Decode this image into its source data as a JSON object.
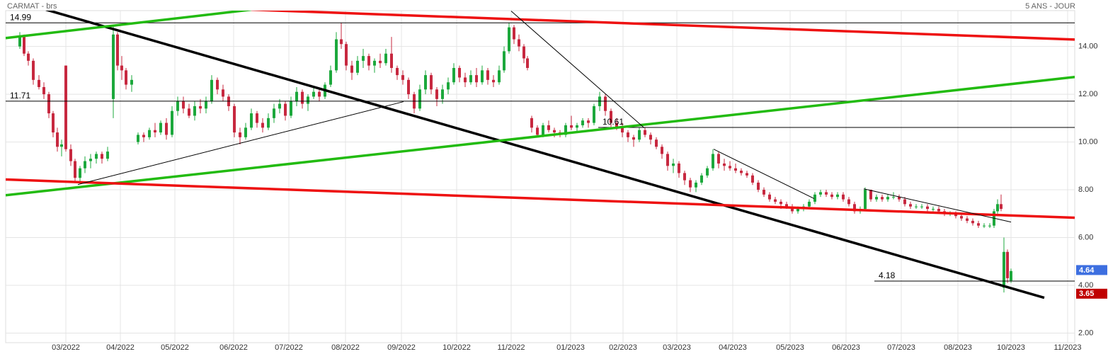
{
  "chart_data": {
    "type": "candlestick",
    "title": "CARMAT - brs",
    "subtitle": "5 ANS - JOUR",
    "up_color": "#1ca83c",
    "down_color": "#c7283f",
    "grid": true,
    "xlim": [
      0,
      151
    ],
    "ylim": [
      1.6,
      15.5
    ],
    "yticks": [
      {
        "value": 2,
        "label": "2.00"
      },
      {
        "value": 4,
        "label": "4.00"
      },
      {
        "value": 6,
        "label": "6.00"
      },
      {
        "value": 8,
        "label": "8.00"
      },
      {
        "value": 10,
        "label": "10.00"
      },
      {
        "value": 12,
        "label": "12.00"
      },
      {
        "value": 14,
        "label": "14.00"
      }
    ],
    "xticks": [
      {
        "value": 8.5,
        "label": "03/2022"
      },
      {
        "value": 16.2,
        "label": "04/2022"
      },
      {
        "value": 23.9,
        "label": "05/2022"
      },
      {
        "value": 32.2,
        "label": "06/2022"
      },
      {
        "value": 40.0,
        "label": "07/2022"
      },
      {
        "value": 48.0,
        "label": "08/2022"
      },
      {
        "value": 55.9,
        "label": "09/2022"
      },
      {
        "value": 63.7,
        "label": "10/2022"
      },
      {
        "value": 71.4,
        "label": "11/2022"
      },
      {
        "value": 79.8,
        "label": "01/2023"
      },
      {
        "value": 87.2,
        "label": "02/2023"
      },
      {
        "value": 94.8,
        "label": "03/2023"
      },
      {
        "value": 102.7,
        "label": "04/2023"
      },
      {
        "value": 110.8,
        "label": "05/2023"
      },
      {
        "value": 118.7,
        "label": "06/2023"
      },
      {
        "value": 126.5,
        "label": "07/2023"
      },
      {
        "value": 134.5,
        "label": "08/2023"
      },
      {
        "value": 142.0,
        "label": "10/2023"
      },
      {
        "value": 150.0,
        "label": "11/2023"
      }
    ],
    "x": [
      2.0,
      2.6,
      3.2,
      3.9,
      4.7,
      5.4,
      6.1,
      6.7,
      7.3,
      7.9,
      8.5,
      9.2,
      9.8,
      10.5,
      11.2,
      12.0,
      12.8,
      13.6,
      14.4,
      15.2,
      15.8,
      16.4,
      17.0,
      17.8,
      18.7,
      19.5,
      20.3,
      21.1,
      21.9,
      22.7,
      23.5,
      24.3,
      25.1,
      25.9,
      26.7,
      27.5,
      28.3,
      29.1,
      29.9,
      30.7,
      31.5,
      32.3,
      33.1,
      33.9,
      34.7,
      35.5,
      36.3,
      37.1,
      37.9,
      38.7,
      39.5,
      40.3,
      41.1,
      41.9,
      42.7,
      43.5,
      44.3,
      45.1,
      45.9,
      46.7,
      47.4,
      48.1,
      48.9,
      49.7,
      50.5,
      51.3,
      52.1,
      52.9,
      53.7,
      54.5,
      55.3,
      56.1,
      56.9,
      57.7,
      58.5,
      59.3,
      60.1,
      60.9,
      61.7,
      62.5,
      63.3,
      64.1,
      64.9,
      65.7,
      66.5,
      67.3,
      68.1,
      68.9,
      69.7,
      70.4,
      71.1,
      71.8,
      72.5,
      73.2,
      73.7,
      74.3,
      75.1,
      75.9,
      76.7,
      77.5,
      78.3,
      79.1,
      79.9,
      80.7,
      81.5,
      82.3,
      83.1,
      83.9,
      84.7,
      85.5,
      86.3,
      87.1,
      87.9,
      88.7,
      89.5,
      90.3,
      91.1,
      91.9,
      92.7,
      93.5,
      94.3,
      95.1,
      95.9,
      96.7,
      97.5,
      98.3,
      99.1,
      99.9,
      100.7,
      101.5,
      102.3,
      103.1,
      103.9,
      104.7,
      105.5,
      106.3,
      107.1,
      107.9,
      108.7,
      109.5,
      110.3,
      111.1,
      111.9,
      112.7,
      113.5,
      114.3,
      115.1,
      115.9,
      116.7,
      117.5,
      118.3,
      119.1,
      119.9,
      120.7,
      121.4,
      122.2,
      123.0,
      123.8,
      124.6,
      125.4,
      126.2,
      127.0,
      127.8,
      128.6,
      129.4,
      130.2,
      131.0,
      131.8,
      132.6,
      133.4,
      134.2,
      135.0,
      135.8,
      136.6,
      137.4,
      138.2,
      139.0,
      139.6,
      140.1,
      140.6,
      141.0,
      141.5,
      142.0
    ],
    "open": [
      14.0,
      14.4,
      13.7,
      13.4,
      12.6,
      12.3,
      12.0,
      11.2,
      10.4,
      9.8,
      13.2,
      9.7,
      9.2,
      8.5,
      8.9,
      9.2,
      9.3,
      9.5,
      9.3,
      11.8,
      14.5,
      13.2,
      13.0,
      12.4,
      10.0,
      10.3,
      10.2,
      10.5,
      10.4,
      10.8,
      10.3,
      11.3,
      11.7,
      11.4,
      11.1,
      11.5,
      11.4,
      11.7,
      12.6,
      12.2,
      11.9,
      11.5,
      10.4,
      10.2,
      10.6,
      11.2,
      10.8,
      10.6,
      11.0,
      11.4,
      11.6,
      11.1,
      11.7,
      12.1,
      11.6,
      11.9,
      12.1,
      11.9,
      12.4,
      13.0,
      14.3,
      14.1,
      13.2,
      12.9,
      13.4,
      13.6,
      13.2,
      13.4,
      13.3,
      13.7,
      13.1,
      12.8,
      12.6,
      12.0,
      11.4,
      12.2,
      12.8,
      12.2,
      11.8,
      12.2,
      12.5,
      13.1,
      12.7,
      12.5,
      12.8,
      12.5,
      13.0,
      12.6,
      12.5,
      13.0,
      13.8,
      14.8,
      14.3,
      14.0,
      13.5,
      11.0,
      10.6,
      10.3,
      10.7,
      10.5,
      10.4,
      10.3,
      10.7,
      10.6,
      10.7,
      10.9,
      10.8,
      11.5,
      11.9,
      11.3,
      10.8,
      10.6,
      10.4,
      10.2,
      10.1,
      10.5,
      10.3,
      10.1,
      9.8,
      9.5,
      9.0,
      9.1,
      8.7,
      8.4,
      8.1,
      8.3,
      8.6,
      8.9,
      9.5,
      9.1,
      9.0,
      8.9,
      8.8,
      8.7,
      8.6,
      8.3,
      8.0,
      7.8,
      7.6,
      7.5,
      7.4,
      7.3,
      7.1,
      7.2,
      7.3,
      7.5,
      7.8,
      7.9,
      7.8,
      7.7,
      7.8,
      7.6,
      7.4,
      7.1,
      7.2,
      8.0,
      7.6,
      7.7,
      7.6,
      7.7,
      7.7,
      7.6,
      7.4,
      7.3,
      7.3,
      7.3,
      7.2,
      7.2,
      7.1,
      7.0,
      7.0,
      6.9,
      6.8,
      6.7,
      6.6,
      6.5,
      6.5,
      6.5,
      7.1,
      7.4,
      3.9,
      5.4,
      4.2
    ],
    "high": [
      14.6,
      14.5,
      13.8,
      13.5,
      12.8,
      12.5,
      12.1,
      11.3,
      10.6,
      10.1,
      13.2,
      9.9,
      9.3,
      9.0,
      9.4,
      9.5,
      9.6,
      9.6,
      9.8,
      14.9,
      14.6,
      13.6,
      13.1,
      12.8,
      10.4,
      10.4,
      10.6,
      10.8,
      10.9,
      11.0,
      11.5,
      11.9,
      11.9,
      11.6,
      11.7,
      11.8,
      11.9,
      12.8,
      12.7,
      12.4,
      12.0,
      11.6,
      10.6,
      10.8,
      11.4,
      11.3,
      11.0,
      11.2,
      11.6,
      11.8,
      11.7,
      11.9,
      12.3,
      12.2,
      12.0,
      12.3,
      12.2,
      12.5,
      13.2,
      14.6,
      15.0,
      14.2,
      13.4,
      13.6,
      13.9,
      13.7,
      13.5,
      13.7,
      13.9,
      14.4,
      13.2,
      13.0,
      12.7,
      12.1,
      12.4,
      13.0,
      12.9,
      12.3,
      12.4,
      12.7,
      13.3,
      13.2,
      12.9,
      13.0,
      13.1,
      13.2,
      13.1,
      12.8,
      13.2,
      14.0,
      15.0,
      14.9,
      14.5,
      14.1,
      13.6,
      11.1,
      10.7,
      10.8,
      10.9,
      10.6,
      10.5,
      10.8,
      11.1,
      10.8,
      11.0,
      11.0,
      11.6,
      12.1,
      12.0,
      11.4,
      11.0,
      10.8,
      10.5,
      10.3,
      10.6,
      10.6,
      10.4,
      10.2,
      9.9,
      9.6,
      9.3,
      9.2,
      8.8,
      8.5,
      8.4,
      8.7,
      9.0,
      9.7,
      9.6,
      9.3,
      9.2,
      9.1,
      8.9,
      8.8,
      8.7,
      8.4,
      8.1,
      7.9,
      7.7,
      7.6,
      7.5,
      7.4,
      7.3,
      7.4,
      7.6,
      7.9,
      8.0,
      8.0,
      7.9,
      7.9,
      7.9,
      7.7,
      7.5,
      7.3,
      8.1,
      8.0,
      7.8,
      7.8,
      7.8,
      7.9,
      7.8,
      7.7,
      7.5,
      7.4,
      7.4,
      7.4,
      7.3,
      7.3,
      7.2,
      7.1,
      7.1,
      7.0,
      6.9,
      6.8,
      6.7,
      6.6,
      6.6,
      7.2,
      7.6,
      7.8,
      6.0,
      5.5,
      4.7
    ],
    "low": [
      13.9,
      13.6,
      13.2,
      12.4,
      12.2,
      11.8,
      11.0,
      10.2,
      9.6,
      9.4,
      9.6,
      9.0,
      8.3,
      8.3,
      8.7,
      8.9,
      9.1,
      9.1,
      9.2,
      11.0,
      13.0,
      12.6,
      12.2,
      12.1,
      9.9,
      10.0,
      10.1,
      10.2,
      10.3,
      10.1,
      10.2,
      11.1,
      11.2,
      11.0,
      10.9,
      11.2,
      11.2,
      11.6,
      12.0,
      11.7,
      11.3,
      10.2,
      9.9,
      10.1,
      10.5,
      10.6,
      10.4,
      10.5,
      10.8,
      11.2,
      10.9,
      11.0,
      11.5,
      11.4,
      11.3,
      11.8,
      11.7,
      11.8,
      12.3,
      12.9,
      13.9,
      13.0,
      12.6,
      12.8,
      13.1,
      13.0,
      12.9,
      13.1,
      13.2,
      12.9,
      12.6,
      12.4,
      11.8,
      11.2,
      11.3,
      12.0,
      12.0,
      11.5,
      11.6,
      12.0,
      12.4,
      12.5,
      12.3,
      12.4,
      12.3,
      12.4,
      12.4,
      12.3,
      12.4,
      12.9,
      13.7,
      14.1,
      13.8,
      13.3,
      13.0,
      10.4,
      10.2,
      10.2,
      10.4,
      10.2,
      10.2,
      10.2,
      10.5,
      10.4,
      10.6,
      10.6,
      10.7,
      11.3,
      11.1,
      10.6,
      10.5,
      10.2,
      10.0,
      9.8,
      10.0,
      10.2,
      9.9,
      9.7,
      9.3,
      8.8,
      8.7,
      8.5,
      8.2,
      7.9,
      7.9,
      8.2,
      8.5,
      8.8,
      8.9,
      8.8,
      8.8,
      8.7,
      8.6,
      8.5,
      8.2,
      7.9,
      7.7,
      7.5,
      7.4,
      7.2,
      7.2,
      7.0,
      7.0,
      7.1,
      7.2,
      7.4,
      7.7,
      7.7,
      7.6,
      7.6,
      7.5,
      7.3,
      7.0,
      7.0,
      7.1,
      7.5,
      7.5,
      7.5,
      7.5,
      7.6,
      7.5,
      7.3,
      7.2,
      7.2,
      7.2,
      7.1,
      7.1,
      7.0,
      6.9,
      6.9,
      6.8,
      6.7,
      6.6,
      6.5,
      6.4,
      6.4,
      6.4,
      6.4,
      7.0,
      7.1,
      3.7,
      4.1,
      4.1
    ],
    "close": [
      14.4,
      13.7,
      13.4,
      12.6,
      12.3,
      12.0,
      11.2,
      10.4,
      9.8,
      9.9,
      9.7,
      9.2,
      8.5,
      8.9,
      9.2,
      9.3,
      9.5,
      9.3,
      9.6,
      14.5,
      13.2,
      13.0,
      12.4,
      12.6,
      10.3,
      10.2,
      10.5,
      10.4,
      10.8,
      10.3,
      11.3,
      11.7,
      11.4,
      11.1,
      11.5,
      11.4,
      11.7,
      12.6,
      12.2,
      11.9,
      11.5,
      10.4,
      10.2,
      10.6,
      11.2,
      10.8,
      10.6,
      11.0,
      11.4,
      11.6,
      11.1,
      11.7,
      12.1,
      11.6,
      11.9,
      12.1,
      11.9,
      12.4,
      13.0,
      14.3,
      14.1,
      13.2,
      12.9,
      13.4,
      13.6,
      13.2,
      13.4,
      13.3,
      13.7,
      13.1,
      12.8,
      12.6,
      12.0,
      11.4,
      12.2,
      12.8,
      12.2,
      11.8,
      12.2,
      12.5,
      13.1,
      12.7,
      12.5,
      12.8,
      12.5,
      13.0,
      12.6,
      12.5,
      13.0,
      13.8,
      14.8,
      14.3,
      14.0,
      13.5,
      13.1,
      10.6,
      10.3,
      10.7,
      10.5,
      10.4,
      10.3,
      10.7,
      10.6,
      10.7,
      10.9,
      10.8,
      11.5,
      11.9,
      11.3,
      10.8,
      10.6,
      10.4,
      10.2,
      10.1,
      10.5,
      10.3,
      10.1,
      9.8,
      9.5,
      9.0,
      9.1,
      8.7,
      8.4,
      8.1,
      8.3,
      8.6,
      8.9,
      9.5,
      9.1,
      9.0,
      8.9,
      8.8,
      8.7,
      8.6,
      8.3,
      8.0,
      7.8,
      7.6,
      7.5,
      7.4,
      7.3,
      7.1,
      7.2,
      7.3,
      7.5,
      7.8,
      7.9,
      7.8,
      7.7,
      7.8,
      7.6,
      7.4,
      7.1,
      7.2,
      8.0,
      7.6,
      7.7,
      7.6,
      7.7,
      7.7,
      7.6,
      7.4,
      7.3,
      7.3,
      7.3,
      7.2,
      7.2,
      7.1,
      7.0,
      7.0,
      6.9,
      6.8,
      6.7,
      6.6,
      6.5,
      6.5,
      6.5,
      7.1,
      7.4,
      7.2,
      5.4,
      4.3,
      4.6
    ],
    "trendlines": [
      {
        "color": "#000000",
        "weight": "thick",
        "x": [
          5.7,
          146.7
        ],
        "y": [
          15.54,
          3.48
        ]
      },
      {
        "color": "#22bb11",
        "weight": "thick",
        "x": [
          0,
          34.7
        ],
        "y": [
          14.35,
          15.54
        ]
      },
      {
        "color": "#22bb11",
        "weight": "thick",
        "x": [
          0,
          151
        ],
        "y": [
          7.77,
          12.72
        ]
      },
      {
        "color": "#ee1111",
        "weight": "thick",
        "x": [
          34.7,
          151
        ],
        "y": [
          15.54,
          14.29
        ]
      },
      {
        "color": "#ee1111",
        "weight": "thick",
        "x": [
          0,
          151
        ],
        "y": [
          8.43,
          6.83
        ]
      },
      {
        "color": "#000000",
        "weight": "thin",
        "x": [
          10.2,
          56.2
        ],
        "y": [
          8.22,
          11.69
        ]
      },
      {
        "color": "#000000",
        "weight": "thin",
        "x": [
          71.4,
          90.2
        ],
        "y": [
          15.48,
          10.59
        ]
      },
      {
        "color": "#000000",
        "weight": "thin",
        "x": [
          100.0,
          114.2
        ],
        "y": [
          9.7,
          7.63
        ]
      },
      {
        "color": "#000000",
        "weight": "thin",
        "x": [
          121.2,
          142.0
        ],
        "y": [
          8.04,
          6.65
        ]
      }
    ],
    "hlines": [
      {
        "value": 14.99,
        "from": 0
      },
      {
        "value": 11.71,
        "from": 0
      },
      {
        "value": 10.61,
        "from": 83.7
      },
      {
        "value": 4.18,
        "from": 122.7
      }
    ],
    "price_tags": [
      {
        "value": 4.64,
        "color": "#3d6fe0"
      },
      {
        "value": 3.65,
        "color": "#c00000"
      }
    ]
  }
}
